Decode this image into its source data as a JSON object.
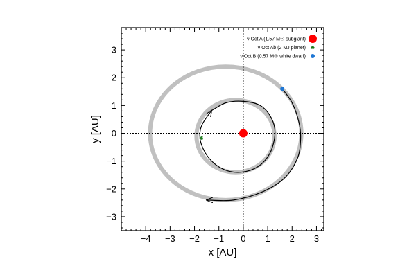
{
  "chart_data": {
    "type": "scatter",
    "title": "",
    "xlabel": "x [AU]",
    "ylabel": "y [AU]",
    "xlim": [
      -5,
      3.3
    ],
    "ylim": [
      -3.5,
      3.8
    ],
    "xticks": [
      -4,
      -3,
      -2,
      -1,
      0,
      1,
      2,
      3
    ],
    "yticks": [
      -3,
      -2,
      -1,
      0,
      1,
      2,
      3
    ],
    "xtick_labels": [
      "−4",
      "−3",
      "−2",
      "−1",
      "0",
      "1",
      "2",
      "3"
    ],
    "ytick_labels": [
      "−3",
      "−2",
      "−1",
      "0",
      "1",
      "2",
      "3"
    ],
    "grid": false,
    "reference_lines": {
      "x": 0,
      "y": 0,
      "style": "dotted"
    },
    "legend_position": "top-right",
    "series": [
      {
        "name": "ν Oct A (1.57 M☉ subgiant)",
        "marker": "circle-large",
        "color": "#ff0000",
        "points": [
          [
            0.0,
            0.0
          ]
        ]
      },
      {
        "name": "ν Oct Ab (2 MJ planet)",
        "marker": "asterisk",
        "color": "#1a7a1a",
        "points": [
          [
            -1.72,
            -0.17
          ]
        ]
      },
      {
        "name": "ν Oct B (0.57 M☉ white dwarf)",
        "marker": "circle-small",
        "color": "#1f77d4",
        "points": [
          [
            1.6,
            1.6
          ]
        ]
      }
    ],
    "orbit_bands": [
      {
        "label": "outer",
        "center": [
          -0.72,
          0.0
        ],
        "rx": 3.1,
        "ry": 2.4,
        "color": "#c0c0c0"
      },
      {
        "label": "inner",
        "center": [
          -0.32,
          -0.1
        ],
        "rx": 1.6,
        "ry": 1.3,
        "color": "#c0c0c0"
      }
    ],
    "trajectories": [
      {
        "label": "companion path",
        "color": "#000000",
        "points": [
          [
            1.6,
            1.6
          ],
          [
            2.0,
            1.1
          ],
          [
            2.28,
            0.4
          ],
          [
            2.35,
            -0.2
          ],
          [
            2.22,
            -0.9
          ],
          [
            1.7,
            -1.6
          ],
          [
            0.8,
            -2.1
          ],
          [
            -0.4,
            -2.4
          ],
          [
            -1.5,
            -2.4
          ]
        ],
        "arrow_at_end": true
      },
      {
        "label": "planet path",
        "color": "#000000",
        "points": [
          [
            -1.3,
            0.82
          ],
          [
            -0.7,
            1.1
          ],
          [
            0.0,
            1.15
          ],
          [
            0.7,
            1.0
          ],
          [
            1.15,
            0.55
          ],
          [
            1.3,
            0.0
          ],
          [
            1.1,
            -0.7
          ],
          [
            0.6,
            -1.2
          ],
          [
            -0.1,
            -1.4
          ],
          [
            -0.8,
            -1.3
          ],
          [
            -1.4,
            -0.9
          ],
          [
            -1.75,
            -0.3
          ],
          [
            -1.72,
            0.25
          ],
          [
            -1.3,
            0.82
          ]
        ],
        "arrow_at_end": true
      }
    ]
  }
}
